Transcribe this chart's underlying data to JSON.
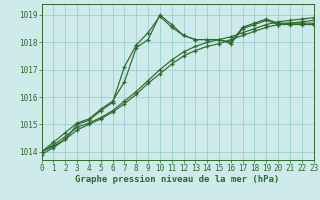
{
  "title": "Graphe pression niveau de la mer (hPa)",
  "bg_color": "#ceeaea",
  "plot_bg_color": "#ceeaea",
  "grid_color": "#9ecece",
  "line_color": "#2d6a2d",
  "marker_color": "#2d6a2d",
  "xlim": [
    0,
    23
  ],
  "ylim": [
    1013.7,
    1019.4
  ],
  "yticks": [
    1014,
    1015,
    1016,
    1017,
    1018,
    1019
  ],
  "xticks": [
    0,
    1,
    2,
    3,
    4,
    5,
    6,
    7,
    8,
    9,
    10,
    11,
    12,
    13,
    14,
    15,
    16,
    17,
    18,
    19,
    20,
    21,
    22,
    23
  ],
  "series_peaked_x": [
    0,
    1,
    2,
    3,
    4,
    5,
    6,
    7,
    8,
    9,
    10,
    11,
    12,
    13,
    14,
    15,
    16,
    17,
    18,
    19,
    20,
    21,
    22,
    23
  ],
  "series_peaked_y": [
    1014.0,
    1014.35,
    1014.7,
    1015.05,
    1015.2,
    1015.55,
    1015.85,
    1016.55,
    1017.8,
    1018.1,
    1019.0,
    1018.65,
    1018.25,
    1018.1,
    1018.1,
    1018.1,
    1017.95,
    1018.5,
    1018.65,
    1018.8,
    1018.65,
    1018.65,
    1018.65,
    1018.65
  ],
  "series_mid_x": [
    0,
    1,
    2,
    3,
    4,
    5,
    6,
    7,
    8,
    9,
    10,
    11,
    12,
    13,
    14,
    15,
    16,
    17,
    18,
    19,
    20,
    21,
    22,
    23
  ],
  "series_mid_y": [
    1013.9,
    1014.15,
    1014.45,
    1015.0,
    1015.15,
    1015.5,
    1015.8,
    1017.1,
    1017.9,
    1018.35,
    1018.95,
    1018.55,
    1018.25,
    1018.1,
    1018.1,
    1018.1,
    1018.0,
    1018.55,
    1018.7,
    1018.85,
    1018.7,
    1018.7,
    1018.7,
    1018.7
  ],
  "series_slow1_x": [
    0,
    1,
    2,
    3,
    4,
    5,
    6,
    7,
    8,
    9,
    10,
    11,
    12,
    13,
    14,
    15,
    16,
    17,
    18,
    19,
    20,
    21,
    22,
    23
  ],
  "series_slow1_y": [
    1014.0,
    1014.25,
    1014.55,
    1014.9,
    1015.05,
    1015.25,
    1015.5,
    1015.85,
    1016.2,
    1016.6,
    1017.0,
    1017.35,
    1017.65,
    1017.85,
    1018.0,
    1018.1,
    1018.2,
    1018.35,
    1018.5,
    1018.65,
    1018.75,
    1018.8,
    1018.85,
    1018.9
  ],
  "series_slow2_x": [
    0,
    1,
    2,
    3,
    4,
    5,
    6,
    7,
    8,
    9,
    10,
    11,
    12,
    13,
    14,
    15,
    16,
    17,
    18,
    19,
    20,
    21,
    22,
    23
  ],
  "series_slow2_y": [
    1014.0,
    1014.2,
    1014.45,
    1014.8,
    1015.0,
    1015.2,
    1015.45,
    1015.75,
    1016.1,
    1016.5,
    1016.85,
    1017.2,
    1017.5,
    1017.7,
    1017.85,
    1017.95,
    1018.1,
    1018.25,
    1018.4,
    1018.55,
    1018.65,
    1018.7,
    1018.75,
    1018.8
  ],
  "xlabel_fontsize": 6.5,
  "tick_fontsize": 5.5
}
